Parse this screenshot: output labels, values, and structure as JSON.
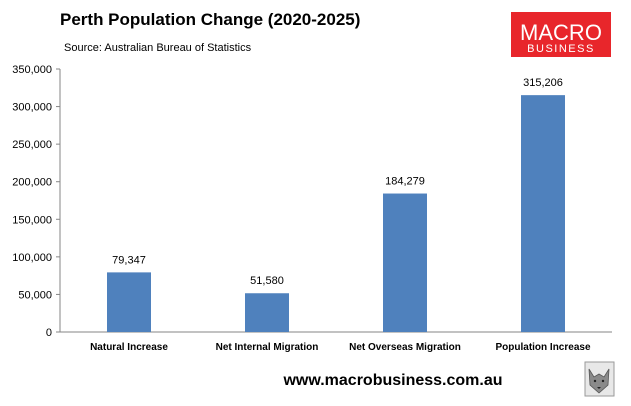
{
  "chart_data": {
    "type": "bar",
    "title": "Perth Population Change (2020-2025)",
    "subtitle": "Source: Australian Bureau of Statistics",
    "categories": [
      "Natural Increase",
      "Net Internal Migration",
      "Net Overseas Migration",
      "Population Increase"
    ],
    "values": [
      79347,
      51580,
      184279,
      315206
    ],
    "data_labels": [
      "79,347",
      "51,580",
      "184,279",
      "315,206"
    ],
    "y_ticks": [
      "0",
      "50,000",
      "100,000",
      "150,000",
      "200,000",
      "250,000",
      "300,000",
      "350,000"
    ],
    "ylim": [
      0,
      350000
    ],
    "xlabel": "",
    "ylabel": "",
    "grid": false,
    "legend": "none",
    "bar_color": "#4F81BD"
  },
  "logo": {
    "line1": "MACRO",
    "line2": "BUSINESS",
    "color": "#E8262B"
  },
  "website": "www.macrobusiness.com.au"
}
